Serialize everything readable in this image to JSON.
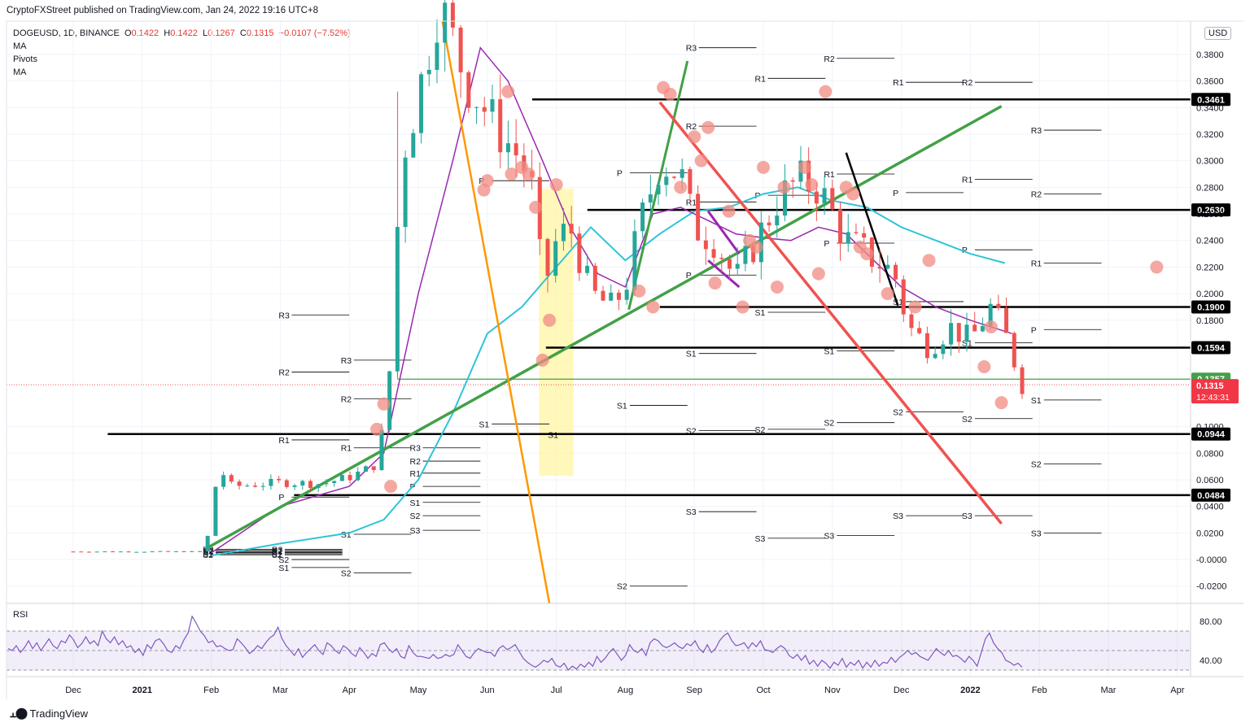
{
  "publisher_line": "CryptoFXStreet published on TradingView.com, Jan 24, 2022 19:16 UTC+8",
  "legend": {
    "symbol": "DOGEUSD, 1D, BINANCE",
    "open_k": "O",
    "open_v": "0.1422",
    "high_k": "H",
    "high_v": "0.1422",
    "low_k": "L",
    "low_v": "0.1267",
    "close_k": "C",
    "close_v": "0.1315",
    "change": "−0.0107 (−7.52%)",
    "indicators": [
      "MA",
      "Pivots",
      "MA"
    ]
  },
  "currency_button": "USD",
  "brand": "TradingView",
  "rsi_label": "RSI",
  "colors": {
    "up": "#26a69a",
    "down": "#ef5350",
    "red_line": "#f23645",
    "green_line": "#43a047",
    "orange_line": "#ff9800",
    "black_line": "#000000",
    "ma_fast": "#2ec4d8",
    "ma_slow": "#9c27b0",
    "rsi": "#7e57c2",
    "marker": "#f28b82",
    "highlight": "#fff59d"
  },
  "chart_data": {
    "type": "candlestick",
    "title": "",
    "x_axis_labels": [
      "Dec",
      "2021",
      "Feb",
      "Mar",
      "Apr",
      "May",
      "Jun",
      "Jul",
      "Aug",
      "Sep",
      "Oct",
      "Nov",
      "Dec",
      "2022",
      "Feb",
      "Mar",
      "Apr"
    ],
    "y_axis_labels": [
      "0.3800",
      "0.3600",
      "0.3400",
      "0.3200",
      "0.3000",
      "0.2800",
      "0.2600",
      "0.2400",
      "0.2200",
      "0.2000",
      "0.1800",
      "0.1000",
      "0.0800",
      "0.0600",
      "0.0400",
      "0.0200",
      "-0.0000",
      "-0.0200"
    ],
    "ylim": [
      -0.033,
      0.405
    ],
    "key_levels": [
      {
        "value": 0.3461,
        "label": "0.3461"
      },
      {
        "value": 0.263,
        "label": "0.2630"
      },
      {
        "value": 0.19,
        "label": "0.1900"
      },
      {
        "value": 0.1594,
        "label": "0.1594"
      },
      {
        "value": 0.0944,
        "label": "0.0944"
      },
      {
        "value": 0.0484,
        "label": "0.0484"
      }
    ],
    "support_level": {
      "value": 0.1357,
      "label": "0.1357"
    },
    "last_price": {
      "value": 0.1315,
      "label": "0.1315",
      "countdown": "12:43:31"
    },
    "pivot_labels": [
      {
        "t": "R3",
        "m": 1.9,
        "v": 0.0076
      },
      {
        "t": "R2",
        "m": 1.9,
        "v": 0.0068
      },
      {
        "t": "R1",
        "m": 1.9,
        "v": 0.006
      },
      {
        "t": "P",
        "m": 1.9,
        "v": 0.0052
      },
      {
        "t": "S1",
        "m": 1.9,
        "v": 0.0044
      },
      {
        "t": "S2",
        "m": 1.9,
        "v": 0.0036
      },
      {
        "t": "R3",
        "m": 2.9,
        "v": 0.0076
      },
      {
        "t": "R2",
        "m": 2.9,
        "v": 0.0068
      },
      {
        "t": "R1",
        "m": 2.9,
        "v": 0.006
      },
      {
        "t": "P",
        "m": 2.9,
        "v": 0.0052
      },
      {
        "t": "S1",
        "m": 2.9,
        "v": 0.0044
      },
      {
        "t": "S2",
        "m": 2.9,
        "v": 0.0036
      },
      {
        "t": "R3",
        "m": 3.0,
        "v": 0.184
      },
      {
        "t": "R2",
        "m": 3.0,
        "v": 0.141
      },
      {
        "t": "R1",
        "m": 3.0,
        "v": 0.09
      },
      {
        "t": "P",
        "m": 3.0,
        "v": 0.047
      },
      {
        "t": "S1",
        "m": 3.0,
        "v": -0.006
      },
      {
        "t": "S2",
        "m": 3.0,
        "v": 0.0
      },
      {
        "t": "R3",
        "m": 3.9,
        "v": 0.15
      },
      {
        "t": "R2",
        "m": 3.9,
        "v": 0.121
      },
      {
        "t": "R1",
        "m": 3.9,
        "v": 0.084
      },
      {
        "t": "S1",
        "m": 3.9,
        "v": 0.019
      },
      {
        "t": "S2",
        "m": 3.9,
        "v": -0.01
      },
      {
        "t": "R3",
        "m": 4.9,
        "v": 0.084
      },
      {
        "t": "R2",
        "m": 4.9,
        "v": 0.074
      },
      {
        "t": "R1",
        "m": 4.9,
        "v": 0.065
      },
      {
        "t": "P",
        "m": 4.9,
        "v": 0.055
      },
      {
        "t": "S1",
        "m": 4.9,
        "v": 0.043
      },
      {
        "t": "S2",
        "m": 4.9,
        "v": 0.033
      },
      {
        "t": "S3",
        "m": 4.9,
        "v": 0.022
      },
      {
        "t": "P",
        "m": 5.9,
        "v": 0.285
      },
      {
        "t": "S1",
        "m": 5.9,
        "v": 0.102
      },
      {
        "t": "S1",
        "m": 6.9,
        "v": 0.094
      },
      {
        "t": "P",
        "m": 7.9,
        "v": 0.291
      },
      {
        "t": "S1",
        "m": 7.9,
        "v": 0.116
      },
      {
        "t": "S2",
        "m": 7.9,
        "v": -0.02
      },
      {
        "t": "R3",
        "m": 8.9,
        "v": 0.385
      },
      {
        "t": "R2",
        "m": 8.9,
        "v": 0.326
      },
      {
        "t": "R1",
        "m": 8.9,
        "v": 0.269
      },
      {
        "t": "P",
        "m": 8.9,
        "v": 0.214
      },
      {
        "t": "S1",
        "m": 8.9,
        "v": 0.155
      },
      {
        "t": "S2",
        "m": 8.9,
        "v": 0.097
      },
      {
        "t": "S3",
        "m": 8.9,
        "v": 0.036
      },
      {
        "t": "R1",
        "m": 9.9,
        "v": 0.362
      },
      {
        "t": "P",
        "m": 9.9,
        "v": 0.274
      },
      {
        "t": "S1",
        "m": 9.9,
        "v": 0.186
      },
      {
        "t": "S2",
        "m": 9.9,
        "v": 0.098
      },
      {
        "t": "S3",
        "m": 9.9,
        "v": 0.016
      },
      {
        "t": "R2",
        "m": 10.9,
        "v": 0.377
      },
      {
        "t": "R1",
        "m": 10.9,
        "v": 0.29
      },
      {
        "t": "P",
        "m": 10.9,
        "v": 0.238
      },
      {
        "t": "S1",
        "m": 10.9,
        "v": 0.157
      },
      {
        "t": "S2",
        "m": 10.9,
        "v": 0.103
      },
      {
        "t": "S3",
        "m": 10.9,
        "v": 0.018
      },
      {
        "t": "R1",
        "m": 11.9,
        "v": 0.359
      },
      {
        "t": "P",
        "m": 11.9,
        "v": 0.276
      },
      {
        "t": "S1",
        "m": 11.9,
        "v": 0.194
      },
      {
        "t": "S2",
        "m": 11.9,
        "v": 0.111
      },
      {
        "t": "S3",
        "m": 11.9,
        "v": 0.033
      },
      {
        "t": "R2",
        "m": 12.9,
        "v": 0.359
      },
      {
        "t": "R1",
        "m": 12.9,
        "v": 0.286
      },
      {
        "t": "P",
        "m": 12.9,
        "v": 0.233
      },
      {
        "t": "S1",
        "m": 12.9,
        "v": 0.163
      },
      {
        "t": "S2",
        "m": 12.9,
        "v": 0.106
      },
      {
        "t": "S3",
        "m": 12.9,
        "v": 0.033
      },
      {
        "t": "R3",
        "m": 13.9,
        "v": 0.323
      },
      {
        "t": "R2",
        "m": 13.9,
        "v": 0.275
      },
      {
        "t": "R1",
        "m": 13.9,
        "v": 0.223
      },
      {
        "t": "P",
        "m": 13.9,
        "v": 0.173
      },
      {
        "t": "S1",
        "m": 13.9,
        "v": 0.12
      },
      {
        "t": "S2",
        "m": 13.9,
        "v": 0.072
      },
      {
        "t": "S3",
        "m": 13.9,
        "v": 0.02
      }
    ],
    "rsi": {
      "y_axis_labels": [
        "80.00",
        "40.00"
      ],
      "ylim": [
        25,
        90
      ],
      "band": [
        30,
        70
      ],
      "values": [
        52,
        50,
        55,
        48,
        53,
        60,
        52,
        58,
        50,
        56,
        62,
        55,
        52,
        60,
        58,
        66,
        61,
        53,
        57,
        64,
        57,
        60,
        55,
        70,
        62,
        58,
        64,
        56,
        60,
        53,
        55,
        48,
        52,
        45,
        56,
        52,
        60,
        62,
        57,
        50,
        48,
        55,
        52,
        61,
        68,
        85,
        78,
        70,
        65,
        58,
        60,
        54,
        55,
        52,
        50,
        51,
        62,
        58,
        53,
        47,
        50,
        55,
        52,
        58,
        63,
        66,
        74,
        62,
        55,
        50,
        45,
        52,
        43,
        48,
        52,
        56,
        50,
        46,
        58,
        55,
        50,
        47,
        55,
        52,
        47,
        44,
        53,
        48,
        42,
        47,
        44,
        56,
        58,
        52,
        48,
        52,
        44,
        42,
        55,
        48,
        44,
        44,
        43,
        42,
        46,
        42,
        43,
        46,
        44,
        46,
        56,
        50,
        44,
        42,
        48,
        52,
        50,
        48,
        48,
        44,
        52,
        55,
        51,
        53,
        56,
        49,
        42,
        38,
        35,
        33,
        36,
        40,
        38,
        42,
        35,
        33,
        37,
        30,
        34,
        31,
        36,
        33,
        38,
        34,
        44,
        38,
        42,
        48,
        52,
        46,
        40,
        45,
        56,
        50,
        48,
        52,
        45,
        58,
        62,
        60,
        55,
        53,
        55,
        58,
        54,
        52,
        57,
        55,
        60,
        52,
        48,
        56,
        48,
        52,
        60,
        65,
        68,
        60,
        55,
        56,
        58,
        52,
        58,
        54,
        60,
        51,
        50,
        48,
        52,
        55,
        52,
        45,
        42,
        46,
        40,
        45,
        36,
        40,
        34,
        40,
        37,
        32,
        38,
        35,
        42,
        33,
        38,
        35,
        40,
        32,
        38,
        33,
        40,
        34,
        38,
        37,
        43,
        38,
        43,
        46,
        50,
        46,
        48,
        44,
        42,
        40,
        46,
        52,
        48,
        45,
        50,
        44,
        45,
        42,
        38,
        44,
        40,
        34,
        48,
        62,
        68,
        58,
        52,
        48,
        40,
        38,
        35,
        37,
        33
      ],
      "label": "RSI"
    }
  }
}
